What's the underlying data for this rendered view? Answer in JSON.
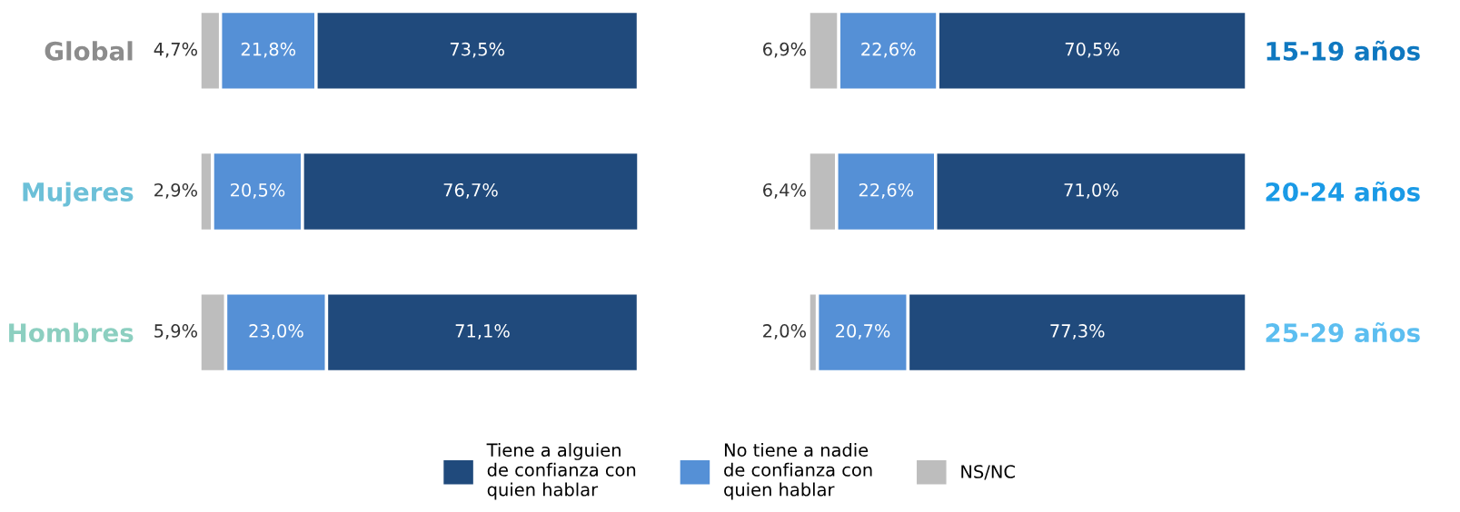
{
  "chart_data": [
    {
      "type": "bar",
      "orientation": "horizontal",
      "stacked": true,
      "tick_labels": "y",
      "grid": false,
      "legend": "bottom",
      "categories": [
        "Global",
        "Mujeres",
        "Hombres"
      ],
      "series": [
        {
          "name": "NS/NC",
          "color": "#bdbdbd",
          "values": [
            4.7,
            2.9,
            5.9
          ],
          "value_labels": [
            "4,7%",
            "2,9%",
            "5,9%"
          ]
        },
        {
          "name": "No tiene a nadie\nde confianza con\nquien hablar",
          "color": "#5590d6",
          "values": [
            21.8,
            20.5,
            23.0
          ],
          "value_labels": [
            "21,8%",
            "20,5%",
            "23,0%"
          ]
        },
        {
          "name": "Tiene a alguien\nde confianza con\nquien hablar",
          "color": "#204a7c",
          "values": [
            73.5,
            76.7,
            71.1
          ],
          "value_labels": [
            "73,5%",
            "76,7%",
            "71,1%"
          ]
        }
      ]
    },
    {
      "type": "bar",
      "orientation": "horizontal",
      "stacked": true,
      "tick_labels": "y",
      "grid": false,
      "categories": [
        "15-19 años",
        "20-24 años",
        "25-29 años"
      ],
      "series": [
        {
          "name": "NS/NC",
          "color": "#bdbdbd",
          "values": [
            6.9,
            6.4,
            2.0
          ],
          "value_labels": [
            "6,9%",
            "6,4%",
            "2,0%"
          ]
        },
        {
          "name": "No tiene a nadie\nde confianza con\nquien hablar",
          "color": "#5590d6",
          "values": [
            22.6,
            22.6,
            20.7
          ],
          "value_labels": [
            "22,6%",
            "22,6%",
            "20,7%"
          ]
        },
        {
          "name": "Tiene a alguien\nde confianza con\nquien hablar",
          "color": "#204a7c",
          "values": [
            70.5,
            71.0,
            77.3
          ],
          "value_labels": [
            "70,5%",
            "71,0%",
            "77,3%"
          ]
        }
      ]
    }
  ]
}
